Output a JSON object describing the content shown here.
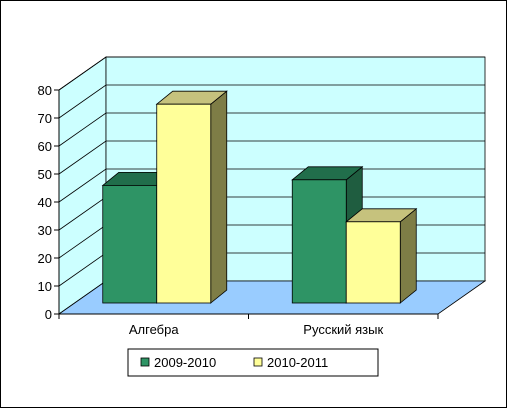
{
  "chart_data": {
    "type": "bar",
    "categories": [
      "Алгебра",
      "Русский язык"
    ],
    "series": [
      {
        "name": "2009-2010",
        "values": [
          42,
          44
        ]
      },
      {
        "name": "2010-2011",
        "values": [
          71,
          29
        ]
      }
    ],
    "ylim": [
      0,
      80
    ],
    "yticks": [
      0,
      10,
      20,
      30,
      40,
      50,
      60,
      70,
      80
    ],
    "grid": true,
    "legend_position": "bottom",
    "style": "3d-clustered-column"
  },
  "colors": {
    "series_0": {
      "front": "#2e9465",
      "top": "#216e4b",
      "side": "#1f5d40"
    },
    "series_1": {
      "front": "#ffff99",
      "top": "#c6c27d",
      "side": "#7e7d46"
    },
    "back_wall": "#ccffff",
    "side_wall": "#ccffff",
    "floor": "#99ccff",
    "gridline": "#000000"
  }
}
